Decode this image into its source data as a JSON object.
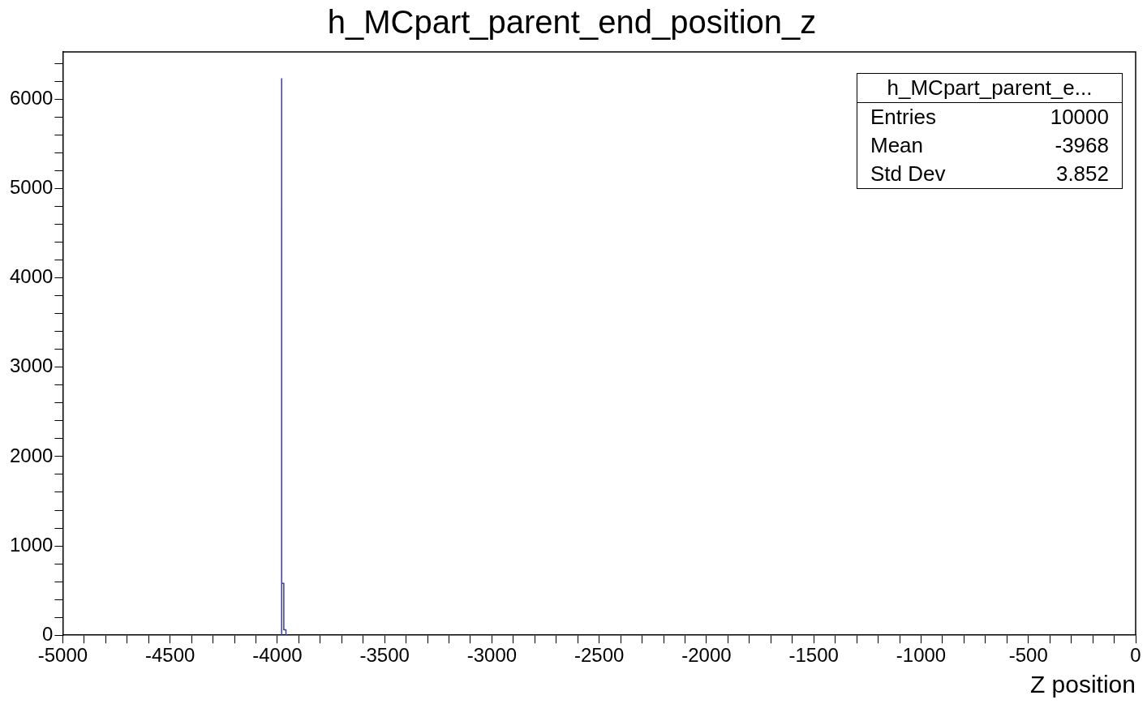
{
  "chart_data": {
    "type": "histogram",
    "title": "h_MCpart_parent_end_position_z",
    "xlabel": "Z position",
    "bins": [
      -3980,
      -3970,
      -3960,
      -3950
    ],
    "values": [
      6230,
      580,
      60
    ],
    "color": "#3b3bb3",
    "xlim": [
      -5000,
      0
    ],
    "ylim": [
      0,
      6530
    ],
    "xticks": [
      -5000,
      {
        "value": -4900,
        "label": null
      },
      {
        "value": -4800,
        "label": null
      },
      {
        "value": -4700,
        "label": null
      },
      {
        "value": -4600,
        "label": null
      },
      -4500,
      {
        "value": -4400,
        "label": null
      },
      {
        "value": -4300,
        "label": null
      },
      {
        "value": -4200,
        "label": null
      },
      {
        "value": -4100,
        "label": null
      },
      -4000,
      {
        "value": -3900,
        "label": null
      },
      {
        "value": -3800,
        "label": null
      },
      {
        "value": -3700,
        "label": null
      },
      {
        "value": -3600,
        "label": null
      },
      -3500,
      {
        "value": -3400,
        "label": null
      },
      {
        "value": -3300,
        "label": null
      },
      {
        "value": -3200,
        "label": null
      },
      {
        "value": -3100,
        "label": null
      },
      -3000,
      {
        "value": -2900,
        "label": null
      },
      {
        "value": -2800,
        "label": null
      },
      {
        "value": -2700,
        "label": null
      },
      {
        "value": -2600,
        "label": null
      },
      -2500,
      {
        "value": -2400,
        "label": null
      },
      {
        "value": -2300,
        "label": null
      },
      {
        "value": -2200,
        "label": null
      },
      {
        "value": -2100,
        "label": null
      },
      -2000,
      {
        "value": -1900,
        "label": null
      },
      {
        "value": -1800,
        "label": null
      },
      {
        "value": -1700,
        "label": null
      },
      {
        "value": -1600,
        "label": null
      },
      -1500,
      {
        "value": -1400,
        "label": null
      },
      {
        "value": -1300,
        "label": null
      },
      {
        "value": -1200,
        "label": null
      },
      {
        "value": -1100,
        "label": null
      },
      -1000,
      {
        "value": -900,
        "label": null
      },
      {
        "value": -800,
        "label": null
      },
      {
        "value": -700,
        "label": null
      },
      {
        "value": -600,
        "label": null
      },
      -500,
      {
        "value": -400,
        "label": null
      },
      {
        "value": -300,
        "label": null
      },
      {
        "value": -200,
        "label": null
      },
      {
        "value": -100,
        "label": null
      },
      0
    ],
    "yticks": [
      0,
      {
        "value": 200,
        "label": null
      },
      {
        "value": 400,
        "label": null
      },
      {
        "value": 600,
        "label": null
      },
      {
        "value": 800,
        "label": null
      },
      1000,
      {
        "value": 1200,
        "label": null
      },
      {
        "value": 1400,
        "label": null
      },
      {
        "value": 1600,
        "label": null
      },
      {
        "value": 1800,
        "label": null
      },
      2000,
      {
        "value": 2200,
        "label": null
      },
      {
        "value": 2400,
        "label": null
      },
      {
        "value": 2600,
        "label": null
      },
      {
        "value": 2800,
        "label": null
      },
      3000,
      {
        "value": 3200,
        "label": null
      },
      {
        "value": 3400,
        "label": null
      },
      {
        "value": 3600,
        "label": null
      },
      {
        "value": 3800,
        "label": null
      },
      4000,
      {
        "value": 4200,
        "label": null
      },
      {
        "value": 4400,
        "label": null
      },
      {
        "value": 4600,
        "label": null
      },
      {
        "value": 4800,
        "label": null
      },
      5000,
      {
        "value": 5200,
        "label": null
      },
      {
        "value": 5400,
        "label": null
      },
      {
        "value": 5600,
        "label": null
      },
      {
        "value": 5800,
        "label": null
      },
      6000,
      {
        "value": 6200,
        "label": null
      },
      {
        "value": 6400,
        "label": null
      }
    ],
    "grid": false,
    "legend": false,
    "annotations": [
      "h_MCpart_parent_e...",
      "Entries",
      "10000",
      "Mean",
      "-3968",
      "Std Dev",
      "3.852"
    ]
  }
}
